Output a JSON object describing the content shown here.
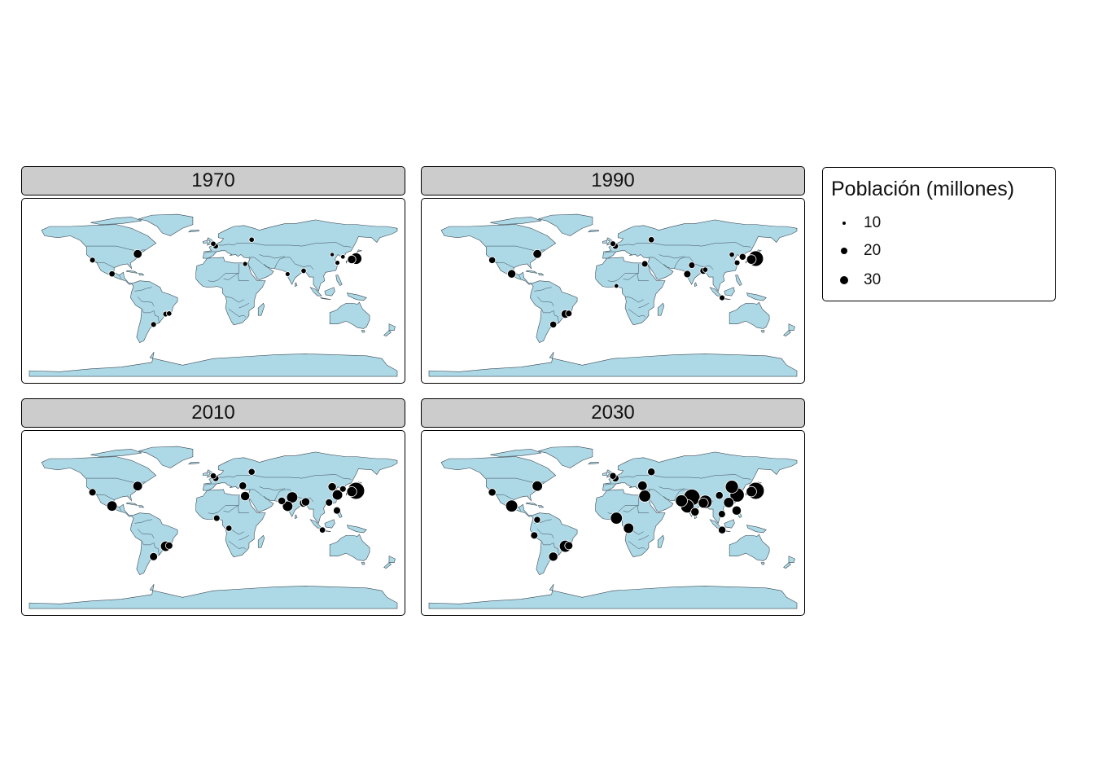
{
  "chart_data": {
    "type": "scatter",
    "subtype": "proportional-symbol world map, faceted by year",
    "land_color": "#add8e6",
    "point_color": "#000000",
    "legend": {
      "title": "Población (millones)",
      "placement": "right",
      "entries": [
        {
          "label": "10",
          "value": 10
        },
        {
          "label": "20",
          "value": 20
        },
        {
          "label": "30",
          "value": 30
        }
      ]
    },
    "panels": [
      {
        "year": "1970",
        "points": [
          {
            "lon": 139.7,
            "lat": 35.7,
            "pop": 23
          },
          {
            "lon": 135.5,
            "lat": 34.7,
            "pop": 15
          },
          {
            "lon": -74.0,
            "lat": 40.7,
            "pop": 16
          },
          {
            "lon": -118.2,
            "lat": 34.0,
            "pop": 8
          },
          {
            "lon": -99.1,
            "lat": 19.4,
            "pop": 9
          },
          {
            "lon": -46.6,
            "lat": -23.5,
            "pop": 8
          },
          {
            "lon": -43.2,
            "lat": -22.9,
            "pop": 7
          },
          {
            "lon": -58.4,
            "lat": -34.6,
            "pop": 8
          },
          {
            "lon": 0.0,
            "lat": 51.5,
            "pop": 7
          },
          {
            "lon": 2.35,
            "lat": 48.9,
            "pop": 8
          },
          {
            "lon": 37.6,
            "lat": 55.8,
            "pop": 7
          },
          {
            "lon": 88.4,
            "lat": 22.6,
            "pop": 7
          },
          {
            "lon": 72.8,
            "lat": 19.1,
            "pop": 6
          },
          {
            "lon": 121.5,
            "lat": 31.2,
            "pop": 6
          },
          {
            "lon": 116.4,
            "lat": 39.9,
            "pop": 4
          },
          {
            "lon": 126.9,
            "lat": 37.6,
            "pop": 5
          },
          {
            "lon": 31.2,
            "lat": 30.0,
            "pop": 6
          }
        ]
      },
      {
        "year": "1990",
        "points": [
          {
            "lon": 139.7,
            "lat": 35.7,
            "pop": 33
          },
          {
            "lon": 135.5,
            "lat": 34.7,
            "pop": 18
          },
          {
            "lon": -74.0,
            "lat": 40.7,
            "pop": 16
          },
          {
            "lon": -118.2,
            "lat": 34.0,
            "pop": 11
          },
          {
            "lon": -99.1,
            "lat": 19.4,
            "pop": 15
          },
          {
            "lon": -46.6,
            "lat": -23.5,
            "pop": 15
          },
          {
            "lon": -43.2,
            "lat": -22.9,
            "pop": 10
          },
          {
            "lon": -58.4,
            "lat": -34.6,
            "pop": 11
          },
          {
            "lon": 0.0,
            "lat": 51.5,
            "pop": 8
          },
          {
            "lon": 2.35,
            "lat": 48.9,
            "pop": 9
          },
          {
            "lon": 37.6,
            "lat": 55.8,
            "pop": 9
          },
          {
            "lon": 72.8,
            "lat": 19.1,
            "pop": 12
          },
          {
            "lon": 88.4,
            "lat": 22.6,
            "pop": 11
          },
          {
            "lon": 77.2,
            "lat": 28.6,
            "pop": 10
          },
          {
            "lon": 90.4,
            "lat": 23.8,
            "pop": 7
          },
          {
            "lon": 106.8,
            "lat": -6.2,
            "pop": 8
          },
          {
            "lon": 121.5,
            "lat": 31.2,
            "pop": 8
          },
          {
            "lon": 116.4,
            "lat": 39.9,
            "pop": 7
          },
          {
            "lon": 126.9,
            "lat": 37.6,
            "pop": 11
          },
          {
            "lon": 3.4,
            "lat": 6.5,
            "pop": 5
          },
          {
            "lon": 31.2,
            "lat": 30.0,
            "pop": 10
          }
        ]
      },
      {
        "year": "2010",
        "points": [
          {
            "lon": 139.7,
            "lat": 35.7,
            "pop": 37
          },
          {
            "lon": 135.5,
            "lat": 34.7,
            "pop": 19
          },
          {
            "lon": -74.0,
            "lat": 40.7,
            "pop": 18
          },
          {
            "lon": -118.2,
            "lat": 34.0,
            "pop": 12
          },
          {
            "lon": -99.1,
            "lat": 19.4,
            "pop": 20
          },
          {
            "lon": -46.6,
            "lat": -23.5,
            "pop": 20
          },
          {
            "lon": -43.2,
            "lat": -22.9,
            "pop": 12
          },
          {
            "lon": -58.4,
            "lat": -34.6,
            "pop": 14
          },
          {
            "lon": 0.0,
            "lat": 51.5,
            "pop": 9
          },
          {
            "lon": 2.35,
            "lat": 48.9,
            "pop": 10
          },
          {
            "lon": 37.6,
            "lat": 55.8,
            "pop": 11
          },
          {
            "lon": 28.9,
            "lat": 41.0,
            "pop": 13
          },
          {
            "lon": 31.2,
            "lat": 30.0,
            "pop": 17
          },
          {
            "lon": 3.4,
            "lat": 6.5,
            "pop": 10
          },
          {
            "lon": 15.3,
            "lat": -4.3,
            "pop": 9
          },
          {
            "lon": 77.2,
            "lat": 28.6,
            "pop": 22
          },
          {
            "lon": 72.8,
            "lat": 19.1,
            "pop": 20
          },
          {
            "lon": 88.4,
            "lat": 22.6,
            "pop": 15
          },
          {
            "lon": 90.4,
            "lat": 23.8,
            "pop": 15
          },
          {
            "lon": 67.0,
            "lat": 24.9,
            "pop": 13
          },
          {
            "lon": 121.5,
            "lat": 31.2,
            "pop": 20
          },
          {
            "lon": 116.4,
            "lat": 39.9,
            "pop": 15
          },
          {
            "lon": 113.3,
            "lat": 23.1,
            "pop": 12
          },
          {
            "lon": 106.8,
            "lat": -6.2,
            "pop": 9
          },
          {
            "lon": 121.0,
            "lat": 14.6,
            "pop": 12
          },
          {
            "lon": 126.9,
            "lat": 37.6,
            "pop": 10
          }
        ]
      },
      {
        "year": "2030",
        "points": [
          {
            "lon": 139.7,
            "lat": 35.7,
            "pop": 37
          },
          {
            "lon": 135.5,
            "lat": 34.7,
            "pop": 20
          },
          {
            "lon": -74.0,
            "lat": 40.7,
            "pop": 20
          },
          {
            "lon": -118.2,
            "lat": 34.0,
            "pop": 13
          },
          {
            "lon": -99.1,
            "lat": 19.4,
            "pop": 24
          },
          {
            "lon": -46.6,
            "lat": -23.5,
            "pop": 24
          },
          {
            "lon": -43.2,
            "lat": -22.9,
            "pop": 14
          },
          {
            "lon": -58.4,
            "lat": -34.6,
            "pop": 17
          },
          {
            "lon": -74.1,
            "lat": 4.7,
            "pop": 11
          },
          {
            "lon": -77.0,
            "lat": -12.0,
            "pop": 12
          },
          {
            "lon": 0.0,
            "lat": 51.5,
            "pop": 11
          },
          {
            "lon": 2.35,
            "lat": 48.9,
            "pop": 12
          },
          {
            "lon": 37.6,
            "lat": 55.8,
            "pop": 13
          },
          {
            "lon": 28.9,
            "lat": 41.0,
            "pop": 18
          },
          {
            "lon": 31.2,
            "lat": 30.0,
            "pop": 24
          },
          {
            "lon": 3.4,
            "lat": 6.5,
            "pop": 24
          },
          {
            "lon": 15.3,
            "lat": -4.3,
            "pop": 20
          },
          {
            "lon": 77.2,
            "lat": 28.6,
            "pop": 36
          },
          {
            "lon": 72.8,
            "lat": 19.1,
            "pop": 28
          },
          {
            "lon": 88.4,
            "lat": 22.6,
            "pop": 19
          },
          {
            "lon": 90.4,
            "lat": 23.8,
            "pop": 28
          },
          {
            "lon": 67.0,
            "lat": 24.9,
            "pop": 24
          },
          {
            "lon": 80.3,
            "lat": 13.1,
            "pop": 15
          },
          {
            "lon": 121.5,
            "lat": 31.2,
            "pop": 30
          },
          {
            "lon": 116.4,
            "lat": 39.9,
            "pop": 27
          },
          {
            "lon": 113.3,
            "lat": 23.1,
            "pop": 20
          },
          {
            "lon": 106.8,
            "lat": -6.2,
            "pop": 13
          },
          {
            "lon": 121.0,
            "lat": 14.6,
            "pop": 17
          },
          {
            "lon": 106.6,
            "lat": 10.8,
            "pop": 12
          },
          {
            "lon": 104.1,
            "lat": 30.7,
            "pop": 13
          }
        ]
      }
    ]
  }
}
